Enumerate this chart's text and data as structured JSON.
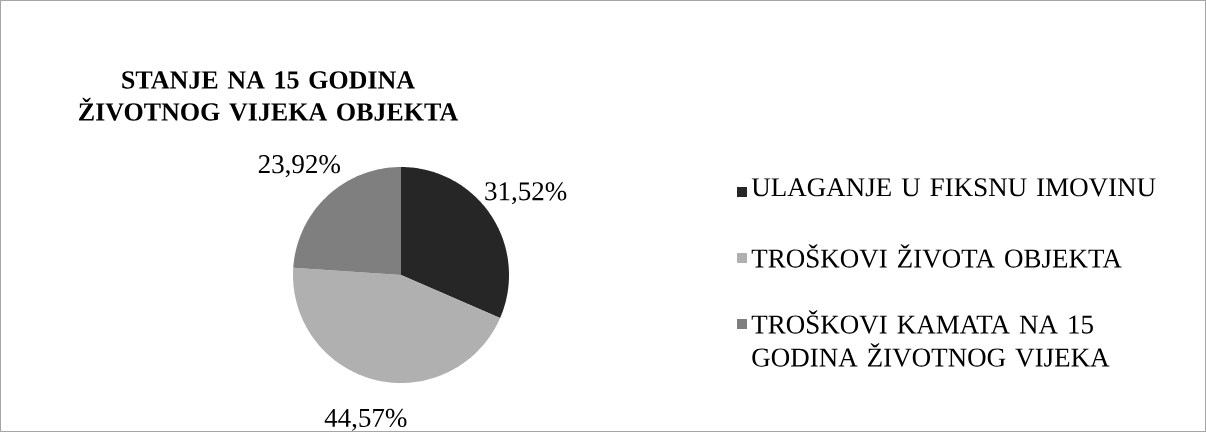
{
  "chart_data": {
    "type": "pie",
    "title": "STANJE NA 15 GODINA ŽIVOTNOG VIJEKA OBJEKTA",
    "categories": [
      "ULAGANJE U FIKSNU IMOVINU",
      "TROŠKOVI ŽIVOTA OBJEKTA",
      "TROŠKOVI KAMATA NA 15 GODINA ŽIVOTNOG VIJEKA"
    ],
    "values": [
      31.52,
      44.57,
      23.92
    ],
    "value_labels": [
      "31,52%",
      "44,57%",
      "23,92%"
    ],
    "colors": [
      "#262626",
      "#b0b0b0",
      "#7f7f7f"
    ],
    "legend": "right"
  }
}
